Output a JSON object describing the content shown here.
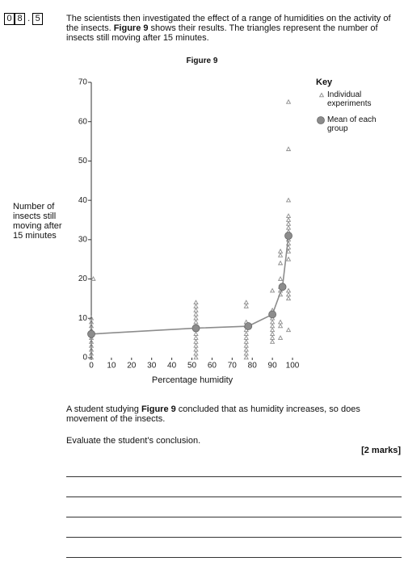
{
  "question_number": [
    "0",
    "8",
    "5"
  ],
  "separator": ".",
  "intro": [
    "The scientists then investigated the effect of a range of humidities on the activity of the insects. ",
    "Figure 9",
    " shows their results.  The triangles represent the number of insects still moving after 15 minutes."
  ],
  "figure_title": "Figure 9",
  "chart_data": {
    "type": "scatter",
    "xlabel": "Percentage humidity",
    "ylabel": "Number of insects still moving after 15 minutes",
    "xlim": [
      0,
      102
    ],
    "ylim": [
      0,
      70
    ],
    "xticks": [
      0,
      10,
      20,
      30,
      40,
      50,
      60,
      70,
      80,
      90,
      100
    ],
    "yticks": [
      0,
      10,
      20,
      30,
      40,
      50,
      60,
      70
    ],
    "legend_title": "Key",
    "legend": "upper right",
    "series": [
      {
        "name": "Individual experiments",
        "marker": "triangle",
        "color": "#8c8c8c",
        "x": [
          0,
          0,
          0,
          0,
          0,
          0,
          0,
          0,
          0,
          0,
          0,
          1,
          52,
          52,
          52,
          52,
          52,
          52,
          52,
          52,
          52,
          52,
          52,
          52,
          52,
          52,
          52,
          77,
          77,
          77,
          77,
          77,
          77,
          77,
          77,
          77,
          77,
          77,
          77,
          90,
          90,
          90,
          90,
          90,
          90,
          90,
          90,
          90,
          90,
          94,
          94,
          94,
          94,
          94,
          94,
          94,
          94,
          94,
          94,
          98,
          98,
          98,
          98,
          98,
          98,
          98,
          98,
          98,
          98,
          98,
          98,
          98,
          98,
          98,
          98,
          98,
          98
        ],
        "values": [
          0,
          1,
          2,
          3,
          4,
          5,
          6,
          7,
          8,
          9,
          10,
          20,
          0,
          1,
          2,
          3,
          4,
          5,
          6,
          7,
          8,
          9,
          10,
          11,
          12,
          13,
          14,
          0,
          1,
          2,
          3,
          4,
          5,
          6,
          7,
          8,
          9,
          13,
          14,
          4,
          5,
          6,
          7,
          8,
          9,
          10,
          11,
          12,
          17,
          5,
          8,
          9,
          16,
          17,
          18,
          20,
          24,
          26,
          27,
          7,
          15,
          16,
          17,
          25,
          27,
          28,
          29,
          30,
          31,
          32,
          33,
          34,
          35,
          36,
          40,
          53,
          65
        ]
      },
      {
        "name": "Mean of each group",
        "marker": "circle",
        "line": true,
        "color": "#8c8c8c",
        "x": [
          0,
          52,
          78,
          90,
          95,
          98
        ],
        "values": [
          6,
          7.5,
          8,
          11,
          18,
          31
        ]
      }
    ]
  },
  "conclusion": [
    "A student studying ",
    "Figure 9",
    " concluded that as humidity increases, so does movement of the insects."
  ],
  "instruction": "Evaluate the student’s conclusion.",
  "marks": "[2 marks]"
}
